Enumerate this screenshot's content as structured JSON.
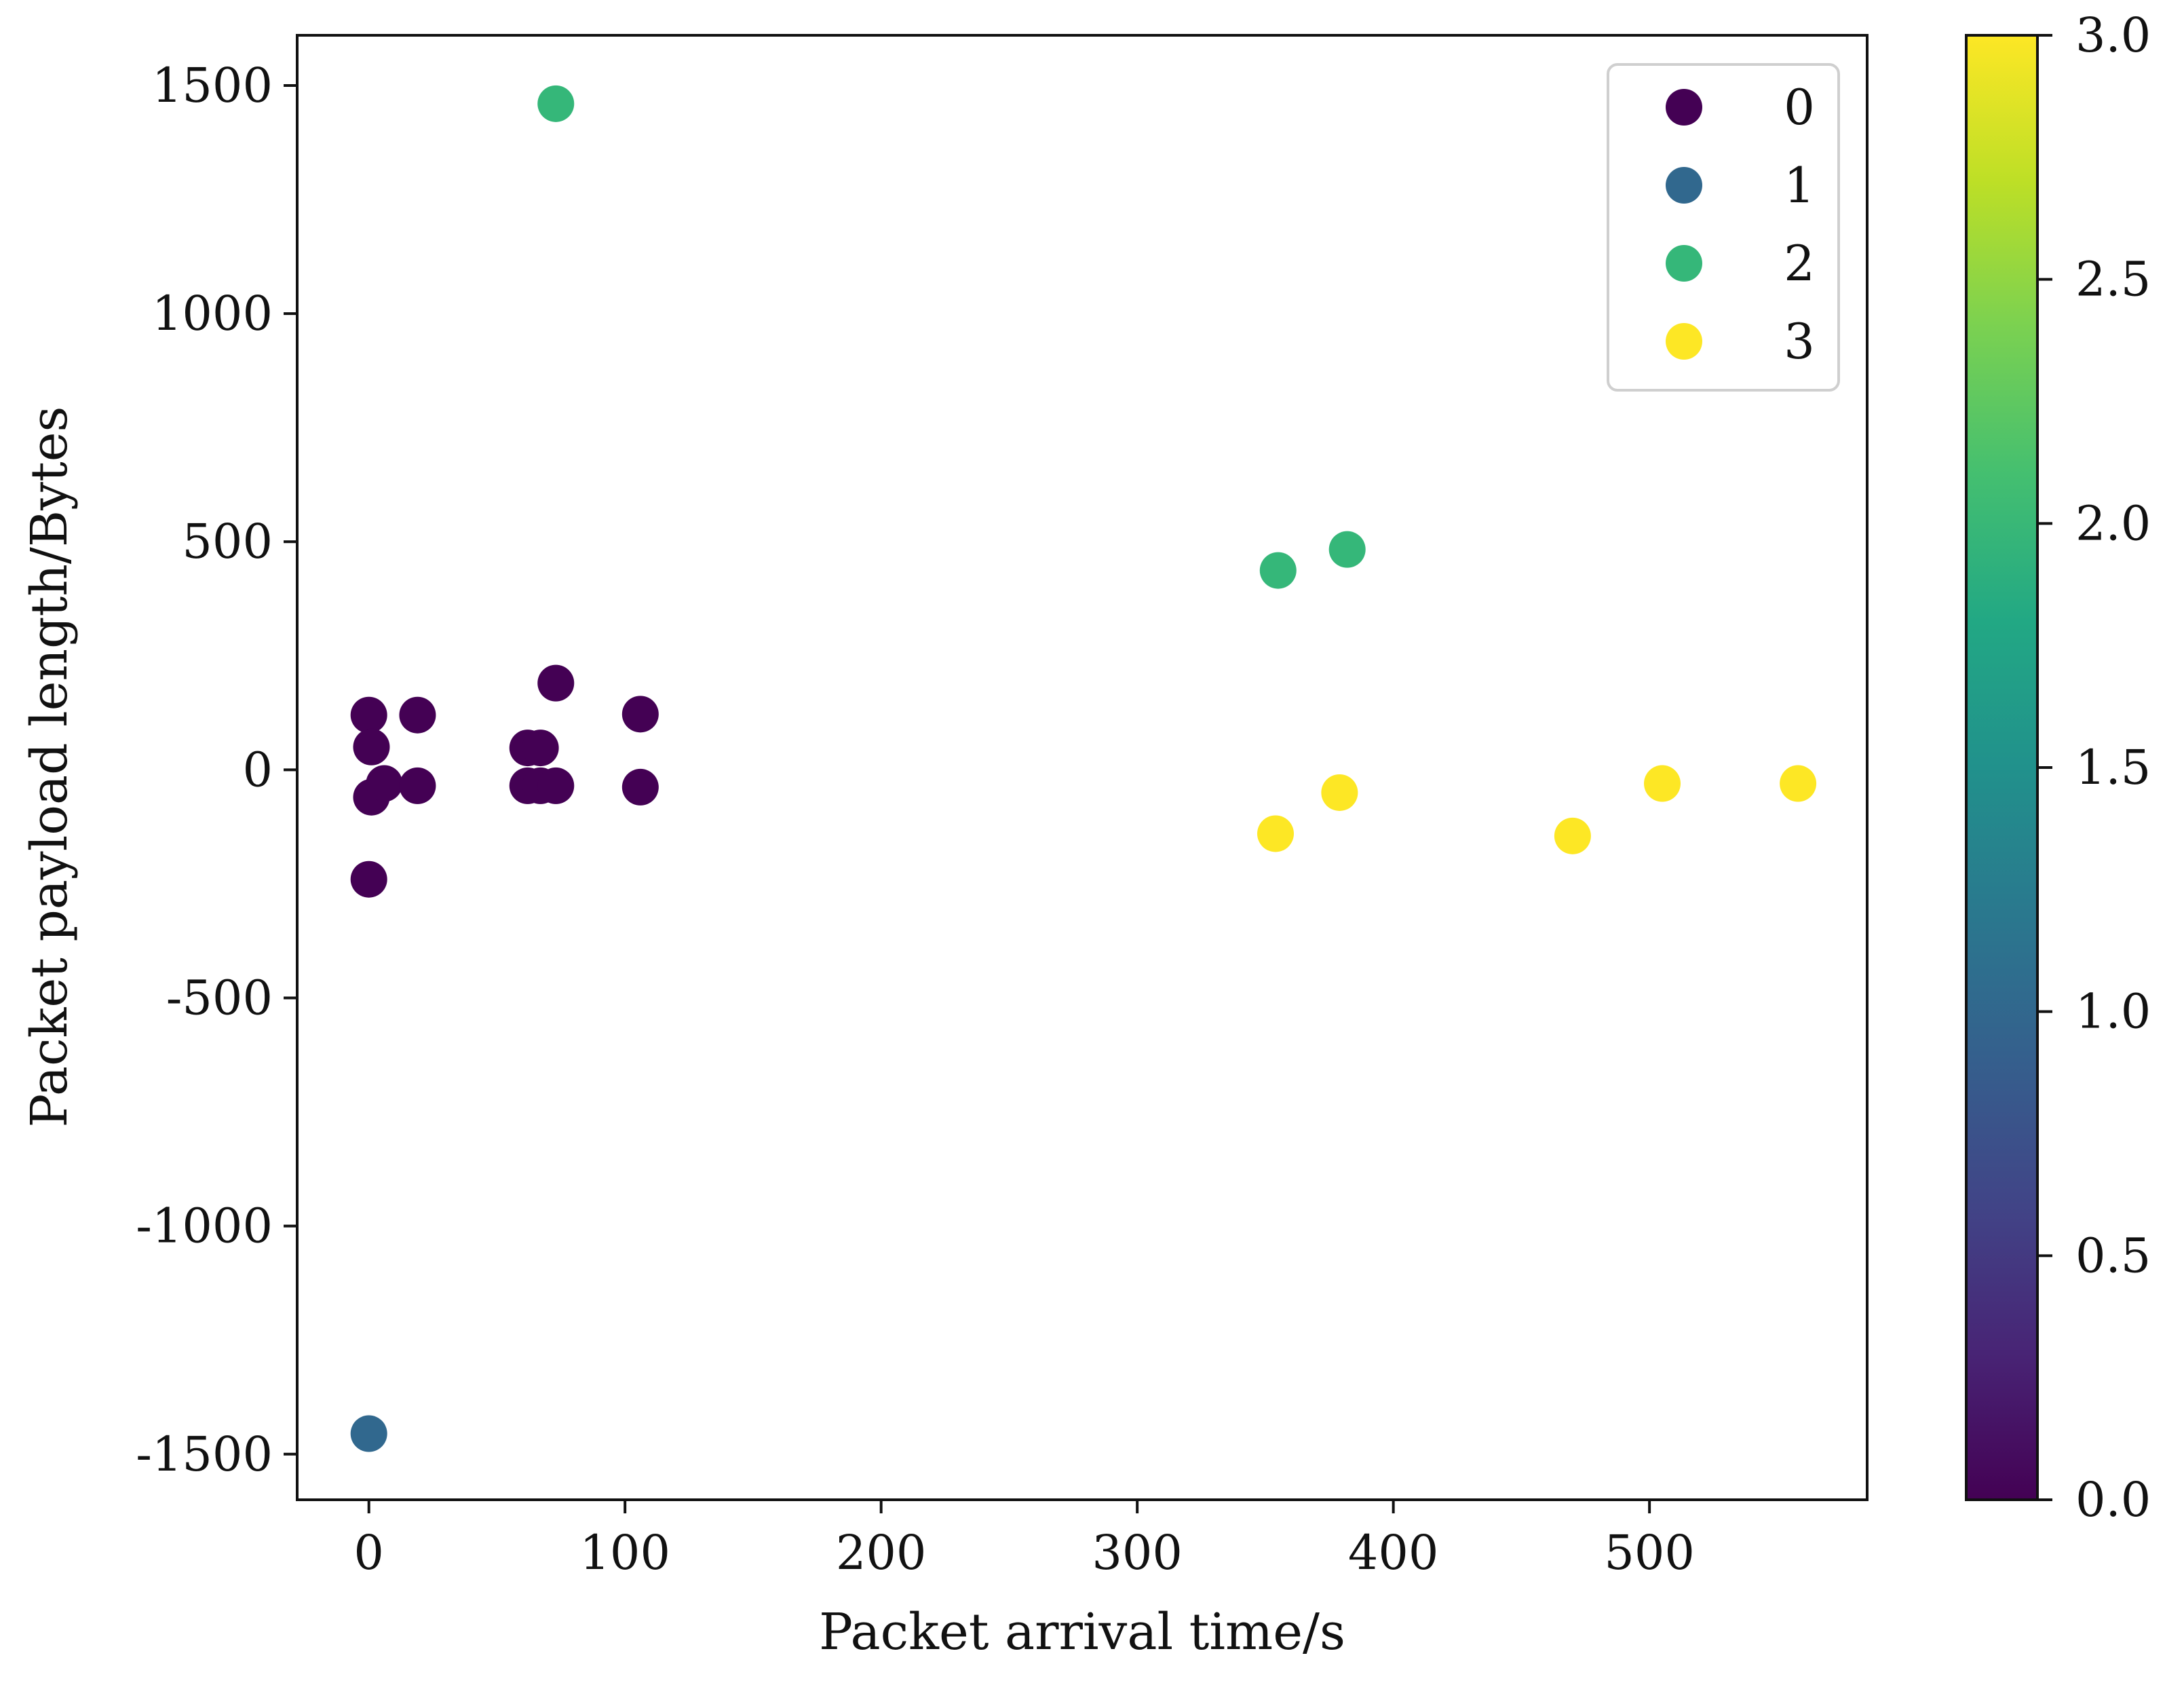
{
  "chart_data": {
    "type": "scatter",
    "xlabel": "Packet arrival time/s",
    "ylabel": "Packet payload length/Bytes",
    "xlim": [
      -28,
      585
    ],
    "ylim": [
      -1600,
      1610
    ],
    "xticks": [
      0,
      100,
      200,
      300,
      400,
      500
    ],
    "yticks": [
      1500,
      1000,
      500,
      0,
      -500,
      -1000,
      -1500
    ],
    "ytick_labels": [
      "1500",
      "1000",
      "500",
      "0",
      "-500",
      "-1000",
      "-1500"
    ],
    "grid": false,
    "legend": {
      "position": "top-right",
      "entries": [
        "0",
        "1",
        "2",
        "3"
      ]
    },
    "series": [
      {
        "name": "0",
        "color": "#440154",
        "points": [
          [
            0,
            120
          ],
          [
            1,
            50
          ],
          [
            1,
            -60
          ],
          [
            6,
            -30
          ],
          [
            0,
            -240
          ],
          [
            19,
            120
          ],
          [
            19,
            -35
          ],
          [
            62,
            48
          ],
          [
            67,
            48
          ],
          [
            62,
            -35
          ],
          [
            67,
            -35
          ],
          [
            73,
            -35
          ],
          [
            73,
            190
          ],
          [
            106,
            122
          ],
          [
            106,
            -38
          ]
        ]
      },
      {
        "name": "1",
        "color": "#31688e",
        "points": [
          [
            0,
            -1455
          ]
        ]
      },
      {
        "name": "2",
        "color": "#35b779",
        "points": [
          [
            73,
            1460
          ],
          [
            355,
            437
          ],
          [
            382,
            483
          ]
        ]
      },
      {
        "name": "3",
        "color": "#fde725",
        "points": [
          [
            354,
            -140
          ],
          [
            379,
            -50
          ],
          [
            470,
            -145
          ],
          [
            505,
            -30
          ],
          [
            558,
            -30
          ]
        ]
      }
    ],
    "colorbar": {
      "range": [
        0.0,
        3.0
      ],
      "ticks": [
        "0.0",
        "0.5",
        "1.0",
        "1.5",
        "2.0",
        "2.5",
        "3.0"
      ],
      "colormap": "viridis",
      "colors": [
        "#440154",
        "#482475",
        "#414487",
        "#355f8d",
        "#2a788e",
        "#21918c",
        "#22a884",
        "#44bf70",
        "#7ad151",
        "#bddf26",
        "#fde725"
      ]
    }
  }
}
